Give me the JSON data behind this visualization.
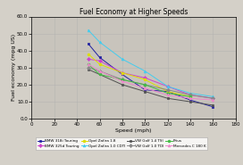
{
  "title": "Fuel Economy at Higher Speeds",
  "xlabel": "Speed (mph)",
  "ylabel": "Fuel economy (mpg US)",
  "xlim": [
    0,
    180
  ],
  "ylim": [
    0,
    60
  ],
  "xticks": [
    0,
    20,
    40,
    60,
    80,
    100,
    120,
    140,
    160,
    180
  ],
  "ytick_labels": [
    "0.0",
    "10.0",
    "20.0",
    "30.0",
    "40.0",
    "50.0",
    "60.0"
  ],
  "yticks": [
    0,
    10,
    20,
    30,
    40,
    50,
    60
  ],
  "series": [
    {
      "label": "BMW 318i Touring",
      "color": "#2020a0",
      "marker": "s",
      "linestyle": "-",
      "x": [
        50,
        60,
        80,
        100,
        120,
        140,
        160
      ],
      "y": [
        44,
        36,
        26,
        17,
        16,
        11,
        7
      ]
    },
    {
      "label": "BMW 325d Touring",
      "color": "#cc44cc",
      "marker": "D",
      "linestyle": "-",
      "x": [
        50,
        60,
        80,
        100,
        120,
        140,
        160
      ],
      "y": [
        35,
        34,
        27,
        24,
        19,
        14,
        12
      ]
    },
    {
      "label": "Opel Zafira 1.8",
      "color": "#dddd00",
      "marker": "o",
      "linestyle": "-",
      "x": [
        50,
        60,
        80,
        100,
        120,
        140
      ],
      "y": [
        38,
        32,
        27,
        23,
        16,
        13
      ]
    },
    {
      "label": "Opel Zafira 1.0 CDTI",
      "color": "#44ccee",
      "marker": "^",
      "linestyle": "-",
      "x": [
        50,
        60,
        80,
        100,
        120,
        140,
        160
      ],
      "y": [
        52,
        45,
        35,
        28,
        19,
        15,
        13
      ]
    },
    {
      "label": "VW Golf 1.4 TSI",
      "color": "#505050",
      "marker": "s",
      "linestyle": "-",
      "x": [
        50,
        60,
        80,
        100,
        120,
        140,
        160
      ],
      "y": [
        29,
        26,
        20,
        16,
        12,
        10,
        8
      ]
    },
    {
      "label": "VW Golf 1.0 TDI",
      "color": "#888888",
      "marker": "D",
      "linestyle": "-",
      "x": [
        50,
        60,
        80,
        100,
        120,
        140,
        160
      ],
      "y": [
        30,
        28,
        23,
        20,
        17,
        14,
        12
      ]
    },
    {
      "label": "Prius",
      "color": "#44bb44",
      "marker": "o",
      "linestyle": "-",
      "x": [
        50,
        60,
        80,
        100,
        120,
        140
      ],
      "y": [
        32,
        26,
        23,
        20,
        15,
        13
      ]
    },
    {
      "label": "Mercedes C 180 K",
      "color": "#ee88cc",
      "marker": "^",
      "linestyle": "-",
      "x": [
        50,
        60,
        80,
        100,
        120,
        140,
        160
      ],
      "y": [
        32,
        28,
        22,
        18,
        14,
        12,
        11
      ]
    }
  ],
  "bg_color": "#d4d0c8",
  "plot_bg_color": "#c8c4bc",
  "grid_color": "#b0b0b0"
}
